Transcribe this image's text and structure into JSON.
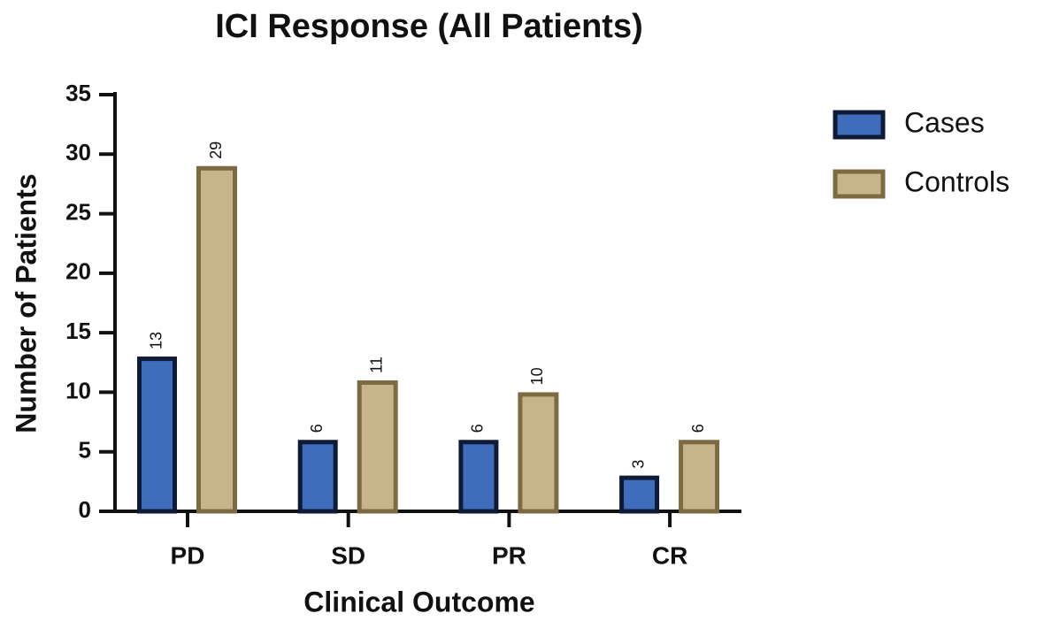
{
  "chart_data": {
    "type": "bar",
    "title": "ICI Response (All Patients)",
    "x_label": "Clinical Outcome",
    "y_label": "Number of Patients",
    "categories": [
      "PD",
      "SD",
      "PR",
      "CR"
    ],
    "series": [
      {
        "name": "Cases",
        "color": "#3f6dbb",
        "values": [
          13,
          6,
          6,
          3
        ]
      },
      {
        "name": "Controls",
        "color": "#c8b48a",
        "values": [
          29,
          11,
          10,
          6
        ]
      }
    ],
    "ylim": [
      0,
      35
    ],
    "yticks": [
      0,
      5,
      10,
      15,
      20,
      25,
      30,
      35
    ]
  }
}
